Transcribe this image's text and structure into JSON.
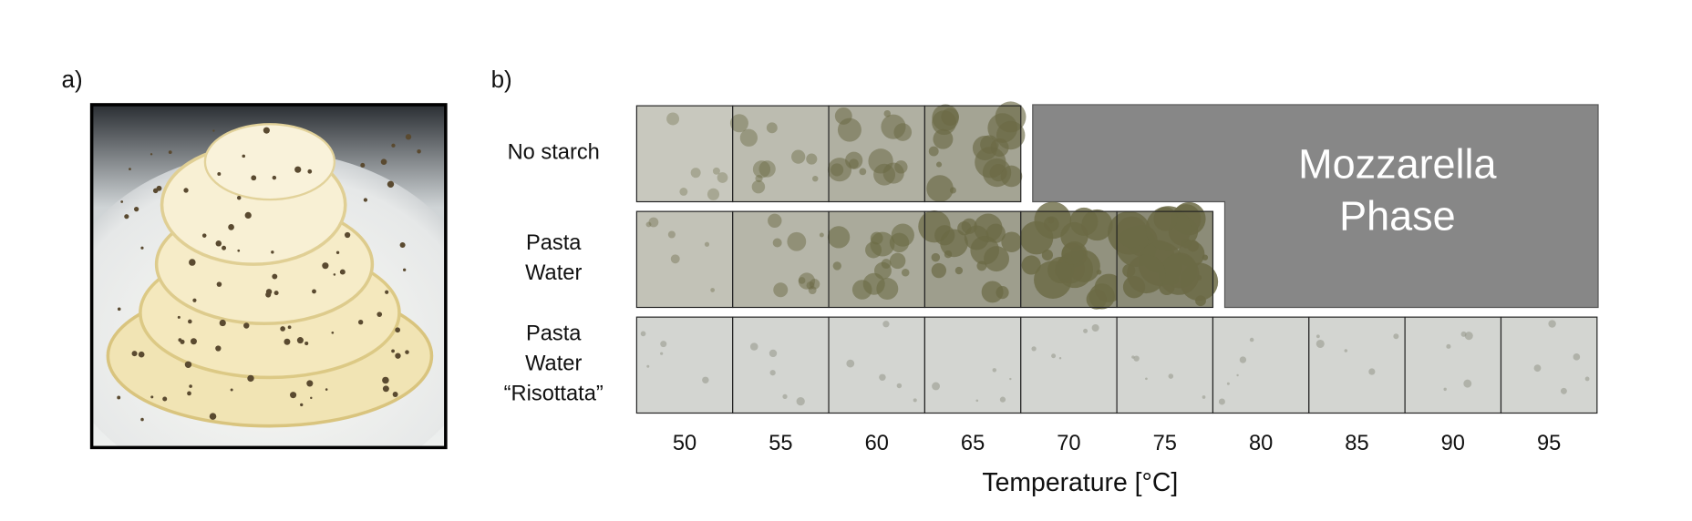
{
  "panel_a": {
    "label": "a)"
  },
  "panel_b": {
    "label": "b)",
    "rows": [
      [
        "No starch"
      ],
      [
        "Pasta",
        "Water"
      ],
      [
        "Pasta",
        "Water",
        "“Risottata”"
      ]
    ],
    "overlay": [
      "Mozzarella",
      "Phase"
    ],
    "temperatures": [
      50,
      55,
      60,
      65,
      70,
      75,
      80,
      85,
      90,
      95
    ],
    "axis_label": "Temperature [°C]"
  }
}
